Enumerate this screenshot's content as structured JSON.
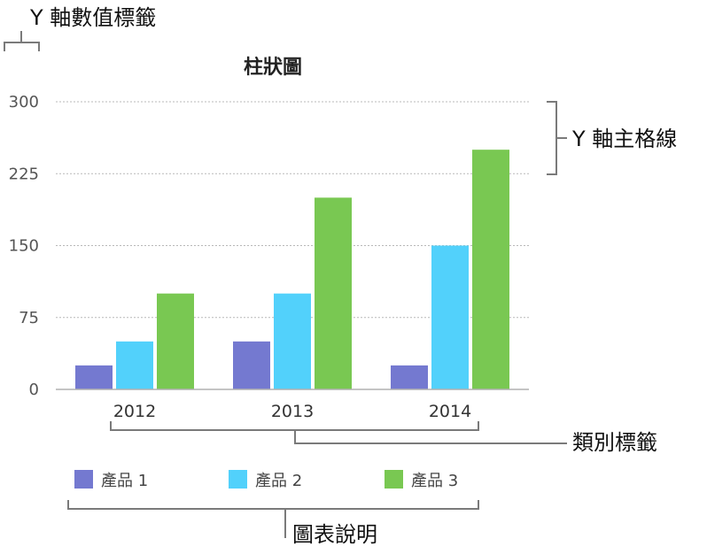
{
  "annotations": {
    "y_value_labels": "Y 軸數值標籤",
    "y_major_gridlines": "Y 軸主格線",
    "category_labels": "類別標籤",
    "legend": "圖表說明"
  },
  "chart_data": {
    "type": "bar",
    "title": "柱狀圖",
    "categories": [
      "2012",
      "2013",
      "2014"
    ],
    "series": [
      {
        "name": "產品 1",
        "color": "#7479d0",
        "values": [
          25,
          50,
          25
        ]
      },
      {
        "name": "產品 2",
        "color": "#52d1fb",
        "values": [
          50,
          100,
          150
        ]
      },
      {
        "name": "產品 3",
        "color": "#79c852",
        "values": [
          100,
          200,
          250
        ]
      }
    ],
    "ylim": [
      0,
      300
    ],
    "yticks": [
      0,
      75,
      150,
      225,
      300
    ],
    "grid": true,
    "legend_position": "bottom"
  }
}
